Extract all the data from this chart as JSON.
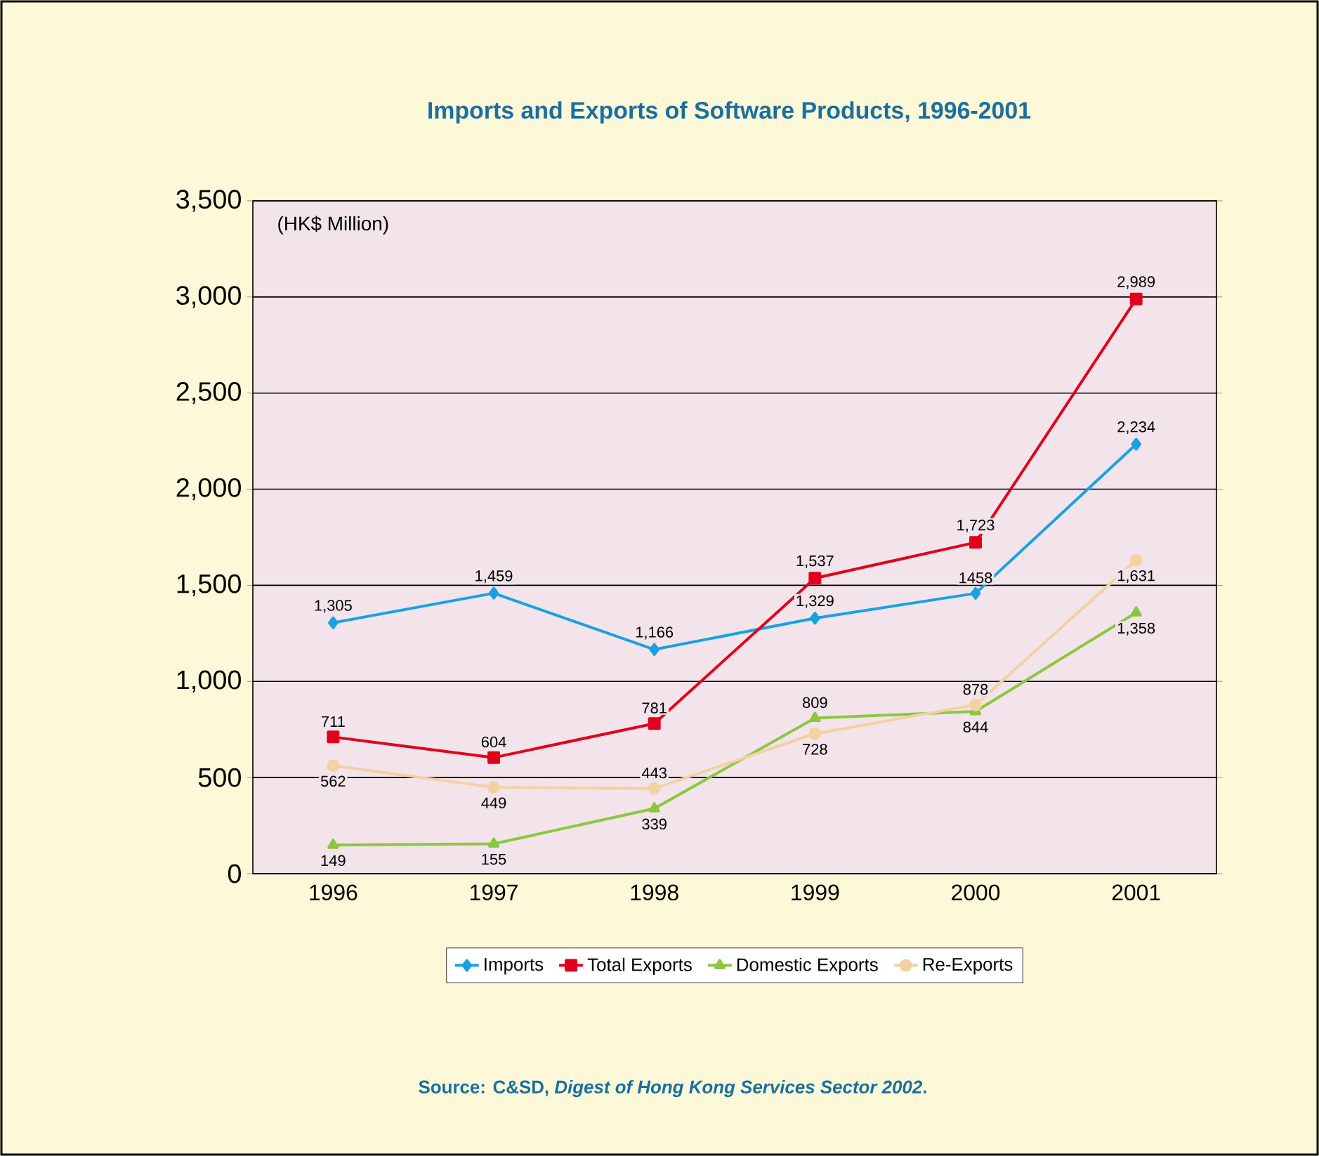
{
  "chart_data": {
    "type": "line",
    "title": "Imports and Exports of Software Products, 1996-2001",
    "categories": [
      "1996",
      "1997",
      "1998",
      "1999",
      "2000",
      "2001"
    ],
    "series": [
      {
        "name": "Imports",
        "color": "#1ba1e2",
        "marker": "diamond",
        "values": [
          1305,
          1459,
          1166,
          1329,
          1458,
          2234
        ],
        "value_labels": [
          "1,305",
          "1,459",
          "1,166",
          "1,329",
          "1458",
          "2,234"
        ]
      },
      {
        "name": "Total Exports",
        "color": "#e2001a",
        "marker": "square",
        "values": [
          711,
          604,
          781,
          1537,
          1723,
          2989
        ],
        "value_labels": [
          "711",
          "604",
          "781",
          "1,537",
          "1,723",
          "2,989"
        ]
      },
      {
        "name": "Domestic Exports",
        "color": "#8dc63f",
        "marker": "triangle",
        "values": [
          149,
          155,
          339,
          809,
          844,
          1358
        ],
        "value_labels": [
          "149",
          "155",
          "339",
          "809",
          "844",
          "1,358"
        ]
      },
      {
        "name": "Re-Exports",
        "color": "#f2d2a2",
        "marker": "circle",
        "values": [
          562,
          449,
          443,
          728,
          878,
          1631
        ],
        "value_labels": [
          "562",
          "449",
          "443",
          "728",
          "878",
          "1,631"
        ]
      }
    ],
    "ylim": [
      0,
      3500
    ],
    "yticks": [
      0,
      500,
      {
        "value": 1000,
        "label": "1,000"
      },
      {
        "value": 1500,
        "label": "1,500"
      },
      {
        "value": 2000,
        "label": "2,000"
      },
      {
        "value": 2500,
        "label": "2,500"
      },
      {
        "value": 3000,
        "label": "3,000"
      },
      {
        "value": 3500,
        "label": "3,500"
      }
    ],
    "grid": "y",
    "legend": "bottom",
    "line_style": "solid",
    "annotations": [
      "(HK$ Million)",
      "Source: C&SD, *Digest of Hong Kong Services Sector 2002*."
    ]
  }
}
